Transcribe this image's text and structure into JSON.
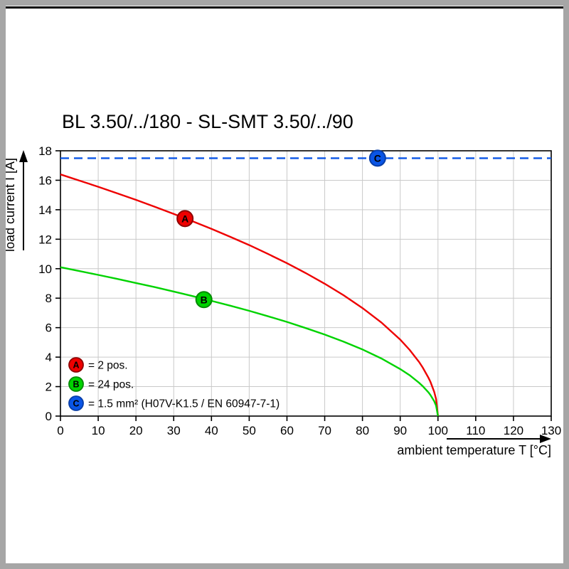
{
  "page": {
    "background": "#ffffff",
    "frame_color": "#a6a6a6",
    "top_rule_color": "#000000"
  },
  "chart_data": {
    "type": "line",
    "title": "BL 3.50/../180 - SL-SMT 3.50/../90",
    "xlabel": "ambient temperature T [°C]",
    "ylabel": "load current I [A]",
    "xlim": [
      0,
      130
    ],
    "ylim": [
      0,
      18
    ],
    "x_ticks": [
      0,
      10,
      20,
      30,
      40,
      50,
      60,
      70,
      80,
      90,
      100,
      110,
      120,
      130
    ],
    "y_ticks": [
      0,
      2,
      4,
      6,
      8,
      10,
      12,
      14,
      16,
      18
    ],
    "grid": true,
    "legend_position": "bottom-left-inside",
    "colors": {
      "grid": "#c9c9c9",
      "axis": "#000000",
      "title": "#000000"
    },
    "series": [
      {
        "name": "A",
        "legend_label": "= 2 pos.",
        "color": "#ee0000",
        "edge_color": "#8f0000",
        "style": "solid",
        "marker": {
          "x": 33,
          "y": 13.4
        },
        "x": [
          0,
          5,
          10,
          15,
          20,
          25,
          30,
          35,
          40,
          45,
          50,
          55,
          60,
          65,
          70,
          75,
          80,
          85,
          90,
          92.5,
          95,
          96,
          97.5,
          98,
          99,
          99.5,
          100
        ],
        "y": [
          16.4,
          15.98,
          15.56,
          15.12,
          14.67,
          14.2,
          13.72,
          13.22,
          12.7,
          12.16,
          11.6,
          11.0,
          10.37,
          9.7,
          8.98,
          8.2,
          7.33,
          6.35,
          5.19,
          4.49,
          3.67,
          3.28,
          2.59,
          2.32,
          1.64,
          1.16,
          0
        ]
      },
      {
        "name": "B",
        "legend_label": "= 24 pos.",
        "color": "#00d300",
        "edge_color": "#008a00",
        "style": "solid",
        "marker": {
          "x": 38,
          "y": 7.9
        },
        "x": [
          0,
          5,
          10,
          15,
          20,
          25,
          30,
          35,
          40,
          45,
          50,
          55,
          60,
          65,
          70,
          75,
          80,
          85,
          90,
          92.5,
          95,
          96,
          97.5,
          98,
          99,
          99.5,
          100
        ],
        "y": [
          10.1,
          9.84,
          9.58,
          9.31,
          9.03,
          8.75,
          8.45,
          8.14,
          7.82,
          7.49,
          7.14,
          6.77,
          6.39,
          5.97,
          5.53,
          5.05,
          4.52,
          3.91,
          3.19,
          2.77,
          2.26,
          2.02,
          1.6,
          1.43,
          1.01,
          0.71,
          0
        ]
      },
      {
        "name": "C",
        "legend_label": "= 1.5 mm² (H07V-K1.5 / EN 60947-7-1)",
        "color": "#0a55e6",
        "edge_color": "#083ea8",
        "style": "dashed",
        "marker": {
          "x": 84,
          "y": 17.5
        },
        "x": [
          0,
          130
        ],
        "y": [
          17.5,
          17.5
        ]
      }
    ]
  }
}
